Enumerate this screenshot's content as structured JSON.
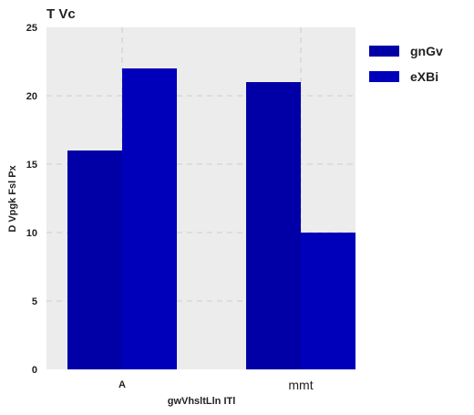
{
  "chart_data": {
    "type": "bar",
    "title": "T Vc",
    "xlabel": "gwVhsltLln ITl",
    "ylabel": "D  Vpgk Fsl Px",
    "categories": [
      "A",
      "mmt"
    ],
    "series": [
      {
        "name": "gnGv",
        "values": [
          16,
          21
        ],
        "color": "#0000a6"
      },
      {
        "name": "eXBi",
        "values": [
          22,
          10
        ],
        "color": "#0000bb"
      }
    ],
    "ylim": [
      0,
      25
    ],
    "yticks": [
      0,
      5,
      10,
      15,
      20,
      25
    ],
    "grid": true,
    "legend_position": "outside-top-right"
  }
}
